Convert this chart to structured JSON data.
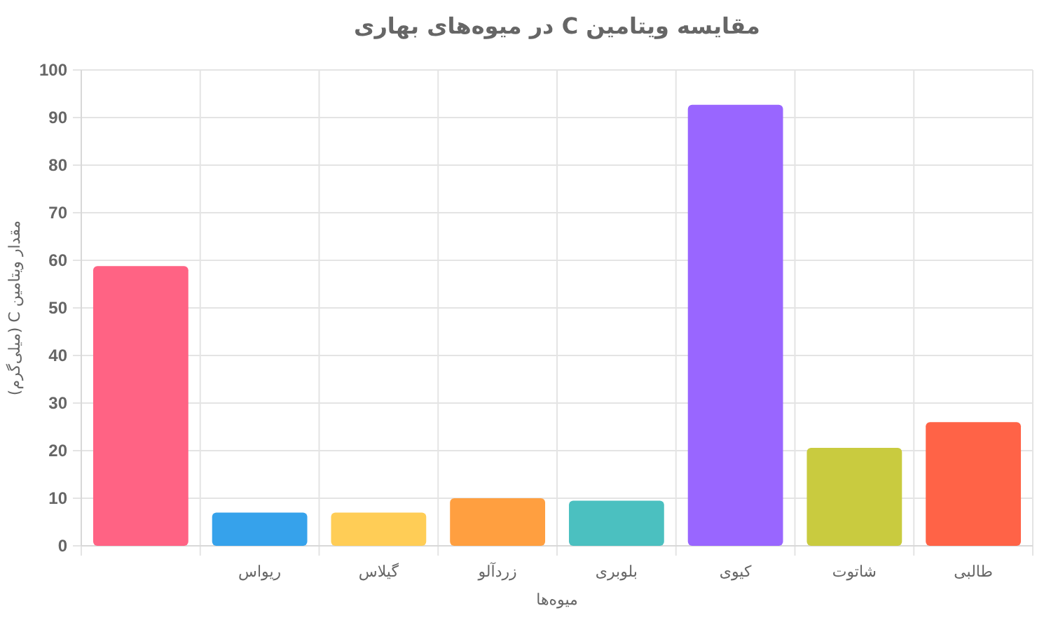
{
  "chart_data": {
    "type": "bar",
    "title": "مقایسه ویتامین C در میوه‌های بهاری",
    "xlabel": "میوه‌ها",
    "ylabel": "مقدار ویتامین C (میلی‌گرم)",
    "categories": [
      null,
      "ریواس",
      "گیلاس",
      "زردآلو",
      "بلوبری",
      "کیوی",
      "شاتوت",
      "طالبی"
    ],
    "values": [
      58.8,
      7,
      7,
      10,
      9.5,
      92.7,
      20.6,
      26
    ],
    "colors": [
      "#ff6384",
      "#36a2eb",
      "#ffcd56",
      "#ff9f40",
      "#4bc0c0",
      "#9966ff",
      "#c9cb3f",
      "#ff6347"
    ],
    "ylim": [
      0,
      100
    ],
    "yticks": [
      0,
      10,
      20,
      30,
      40,
      50,
      60,
      70,
      80,
      90,
      100
    ],
    "grid": true
  }
}
